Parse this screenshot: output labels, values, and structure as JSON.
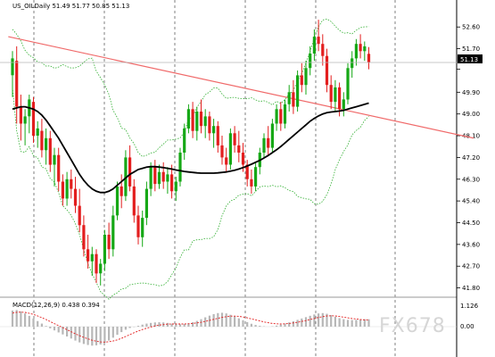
{
  "chart_data": {
    "type": "candlestick",
    "symbol_title": "US_OILDaily  51.49 51.77 50.85 51.13",
    "current_price_label": "51.13",
    "price_axis_ticks": [
      52.6,
      51.7,
      50.85,
      49.9,
      49.0,
      48.1,
      47.2,
      46.3,
      45.4,
      44.5,
      43.6,
      42.7,
      41.8
    ],
    "price_axis_tick_labels": [
      "52.60",
      "51.70",
      "",
      "49.90",
      "49.00",
      "48.10",
      "47.20",
      "46.30",
      "45.40",
      "44.50",
      "43.60",
      "42.70",
      "41.80"
    ],
    "ylim": [
      41.6,
      53.2
    ],
    "macd_label": "MACD(12,26,9) 0.438 0.394",
    "macd_axis_labels": [
      "1.126",
      "0.00"
    ],
    "watermark": "FX678",
    "colors": {
      "bull": "#16a816",
      "bear": "#e31e1e",
      "trendline": "#f06a6a",
      "moving_average": "#000000",
      "bollinger": "#2fae2f",
      "macd_hist": "#b7b7b7",
      "macd_signal": "#e31e1e"
    },
    "candles": [
      {
        "o": 50.6,
        "h": 51.6,
        "l": 49.7,
        "c": 51.3
      },
      {
        "o": 51.2,
        "h": 51.8,
        "l": 48.6,
        "c": 49.3
      },
      {
        "o": 49.3,
        "h": 49.8,
        "l": 47.9,
        "c": 48.6
      },
      {
        "o": 48.6,
        "h": 49.2,
        "l": 47.7,
        "c": 48.9
      },
      {
        "o": 48.9,
        "h": 49.8,
        "l": 48.2,
        "c": 49.6
      },
      {
        "o": 49.5,
        "h": 49.7,
        "l": 47.8,
        "c": 48.1
      },
      {
        "o": 48.1,
        "h": 48.7,
        "l": 47.6,
        "c": 48.4
      },
      {
        "o": 48.3,
        "h": 48.8,
        "l": 47.2,
        "c": 47.5
      },
      {
        "o": 47.5,
        "h": 48.4,
        "l": 46.9,
        "c": 48.0
      },
      {
        "o": 48.0,
        "h": 48.3,
        "l": 46.6,
        "c": 46.9
      },
      {
        "o": 46.9,
        "h": 47.6,
        "l": 46.0,
        "c": 47.3
      },
      {
        "o": 47.3,
        "h": 47.6,
        "l": 45.8,
        "c": 46.2
      },
      {
        "o": 46.2,
        "h": 46.5,
        "l": 45.2,
        "c": 45.5
      },
      {
        "o": 45.5,
        "h": 46.6,
        "l": 45.2,
        "c": 46.3
      },
      {
        "o": 46.3,
        "h": 46.7,
        "l": 45.5,
        "c": 45.9
      },
      {
        "o": 45.9,
        "h": 46.4,
        "l": 44.9,
        "c": 45.2
      },
      {
        "o": 45.2,
        "h": 45.9,
        "l": 44.1,
        "c": 44.4
      },
      {
        "o": 44.4,
        "h": 44.8,
        "l": 43.1,
        "c": 43.4
      },
      {
        "o": 43.4,
        "h": 44.0,
        "l": 42.6,
        "c": 42.9
      },
      {
        "o": 42.9,
        "h": 43.5,
        "l": 42.3,
        "c": 43.2
      },
      {
        "o": 43.2,
        "h": 43.4,
        "l": 42.0,
        "c": 42.4
      },
      {
        "o": 42.4,
        "h": 43.0,
        "l": 41.9,
        "c": 42.8
      },
      {
        "o": 42.8,
        "h": 44.2,
        "l": 42.5,
        "c": 44.0
      },
      {
        "o": 44.0,
        "h": 44.5,
        "l": 43.0,
        "c": 43.4
      },
      {
        "o": 43.4,
        "h": 45.2,
        "l": 43.1,
        "c": 44.8
      },
      {
        "o": 44.8,
        "h": 46.2,
        "l": 44.6,
        "c": 46.0
      },
      {
        "o": 46.0,
        "h": 46.5,
        "l": 45.1,
        "c": 45.6
      },
      {
        "o": 45.6,
        "h": 47.5,
        "l": 45.4,
        "c": 47.2
      },
      {
        "o": 47.2,
        "h": 47.7,
        "l": 45.8,
        "c": 46.0
      },
      {
        "o": 46.0,
        "h": 46.3,
        "l": 44.5,
        "c": 44.8
      },
      {
        "o": 44.8,
        "h": 45.2,
        "l": 43.6,
        "c": 43.9
      },
      {
        "o": 43.9,
        "h": 45.0,
        "l": 43.5,
        "c": 44.7
      },
      {
        "o": 44.7,
        "h": 46.2,
        "l": 44.4,
        "c": 45.9
      },
      {
        "o": 45.9,
        "h": 47.0,
        "l": 45.6,
        "c": 46.8
      },
      {
        "o": 46.8,
        "h": 47.1,
        "l": 45.8,
        "c": 46.1
      },
      {
        "o": 46.1,
        "h": 46.9,
        "l": 45.9,
        "c": 46.6
      },
      {
        "o": 46.6,
        "h": 47.0,
        "l": 45.9,
        "c": 46.2
      },
      {
        "o": 46.2,
        "h": 46.8,
        "l": 45.7,
        "c": 46.5
      },
      {
        "o": 46.5,
        "h": 46.9,
        "l": 45.5,
        "c": 45.8
      },
      {
        "o": 45.8,
        "h": 46.4,
        "l": 45.4,
        "c": 46.2
      },
      {
        "o": 46.2,
        "h": 47.6,
        "l": 46.0,
        "c": 47.4
      },
      {
        "o": 47.4,
        "h": 48.6,
        "l": 47.1,
        "c": 48.4
      },
      {
        "o": 48.4,
        "h": 49.4,
        "l": 48.2,
        "c": 49.2
      },
      {
        "o": 49.2,
        "h": 49.5,
        "l": 48.0,
        "c": 48.3
      },
      {
        "o": 48.3,
        "h": 49.3,
        "l": 47.9,
        "c": 49.1
      },
      {
        "o": 49.1,
        "h": 49.6,
        "l": 48.2,
        "c": 48.5
      },
      {
        "o": 48.5,
        "h": 49.2,
        "l": 48.0,
        "c": 48.9
      },
      {
        "o": 48.9,
        "h": 49.1,
        "l": 47.9,
        "c": 48.2
      },
      {
        "o": 48.2,
        "h": 48.8,
        "l": 47.6,
        "c": 48.5
      },
      {
        "o": 48.5,
        "h": 48.7,
        "l": 47.4,
        "c": 47.7
      },
      {
        "o": 47.7,
        "h": 48.1,
        "l": 46.9,
        "c": 47.2
      },
      {
        "o": 47.2,
        "h": 47.6,
        "l": 46.6,
        "c": 46.9
      },
      {
        "o": 46.9,
        "h": 48.4,
        "l": 46.7,
        "c": 48.2
      },
      {
        "o": 48.2,
        "h": 48.5,
        "l": 47.4,
        "c": 47.7
      },
      {
        "o": 47.7,
        "h": 48.3,
        "l": 47.0,
        "c": 47.4
      },
      {
        "o": 47.4,
        "h": 47.8,
        "l": 46.6,
        "c": 46.9
      },
      {
        "o": 46.9,
        "h": 47.1,
        "l": 46.0,
        "c": 46.3
      },
      {
        "o": 46.3,
        "h": 46.7,
        "l": 45.7,
        "c": 46.0
      },
      {
        "o": 46.0,
        "h": 47.0,
        "l": 45.8,
        "c": 46.8
      },
      {
        "o": 46.8,
        "h": 47.6,
        "l": 46.5,
        "c": 47.4
      },
      {
        "o": 47.4,
        "h": 48.2,
        "l": 47.2,
        "c": 48.0
      },
      {
        "o": 48.0,
        "h": 48.5,
        "l": 47.3,
        "c": 47.6
      },
      {
        "o": 47.6,
        "h": 48.8,
        "l": 47.4,
        "c": 48.6
      },
      {
        "o": 48.6,
        "h": 49.4,
        "l": 48.3,
        "c": 49.2
      },
      {
        "o": 49.2,
        "h": 49.5,
        "l": 48.3,
        "c": 48.6
      },
      {
        "o": 48.6,
        "h": 49.6,
        "l": 48.4,
        "c": 49.4
      },
      {
        "o": 49.4,
        "h": 50.2,
        "l": 49.1,
        "c": 49.9
      },
      {
        "o": 49.9,
        "h": 50.4,
        "l": 49.0,
        "c": 49.3
      },
      {
        "o": 49.3,
        "h": 50.8,
        "l": 49.1,
        "c": 50.6
      },
      {
        "o": 50.6,
        "h": 51.1,
        "l": 49.9,
        "c": 50.2
      },
      {
        "o": 50.2,
        "h": 51.2,
        "l": 49.8,
        "c": 50.9
      },
      {
        "o": 50.9,
        "h": 51.8,
        "l": 50.6,
        "c": 51.5
      },
      {
        "o": 51.5,
        "h": 52.5,
        "l": 51.2,
        "c": 52.2
      },
      {
        "o": 52.2,
        "h": 52.9,
        "l": 51.6,
        "c": 51.9
      },
      {
        "o": 51.9,
        "h": 52.3,
        "l": 51.0,
        "c": 51.4
      },
      {
        "o": 51.4,
        "h": 51.7,
        "l": 49.9,
        "c": 50.2
      },
      {
        "o": 50.2,
        "h": 50.6,
        "l": 49.2,
        "c": 49.5
      },
      {
        "o": 49.5,
        "h": 50.4,
        "l": 49.1,
        "c": 50.1
      },
      {
        "o": 50.1,
        "h": 50.3,
        "l": 48.9,
        "c": 49.2
      },
      {
        "o": 49.2,
        "h": 49.9,
        "l": 48.9,
        "c": 49.6
      },
      {
        "o": 49.6,
        "h": 51.1,
        "l": 49.4,
        "c": 50.9
      },
      {
        "o": 50.9,
        "h": 51.6,
        "l": 50.5,
        "c": 51.3
      },
      {
        "o": 51.3,
        "h": 52.1,
        "l": 51.0,
        "c": 51.9
      },
      {
        "o": 51.9,
        "h": 52.3,
        "l": 51.3,
        "c": 51.6
      },
      {
        "o": 51.6,
        "h": 52.0,
        "l": 51.2,
        "c": 51.8
      },
      {
        "o": 51.49,
        "h": 51.77,
        "l": 50.85,
        "c": 51.13
      }
    ],
    "moving_average": [
      49.2,
      49.25,
      49.3,
      49.3,
      49.25,
      49.2,
      49.1,
      48.95,
      48.75,
      48.5,
      48.25,
      48.0,
      47.7,
      47.4,
      47.1,
      46.8,
      46.5,
      46.25,
      46.05,
      45.9,
      45.8,
      45.75,
      45.75,
      45.8,
      45.9,
      46.05,
      46.2,
      46.35,
      46.5,
      46.6,
      46.7,
      46.75,
      46.8,
      46.82,
      46.82,
      46.8,
      46.78,
      46.75,
      46.72,
      46.68,
      46.65,
      46.62,
      46.6,
      46.58,
      46.56,
      46.55,
      46.55,
      46.55,
      46.55,
      46.56,
      46.58,
      46.6,
      46.63,
      46.67,
      46.72,
      46.78,
      46.85,
      46.92,
      47.0,
      47.08,
      47.18,
      47.28,
      47.4,
      47.52,
      47.65,
      47.8,
      47.95,
      48.1,
      48.25,
      48.4,
      48.55,
      48.7,
      48.82,
      48.92,
      49.0,
      49.05,
      49.08,
      49.1,
      49.12,
      49.15,
      49.2,
      49.25,
      49.3,
      49.35,
      49.4,
      49.45
    ],
    "trendline": {
      "start": {
        "index": -1,
        "price": 52.2
      },
      "end": {
        "index": 110,
        "price": 48.0
      }
    },
    "macd_histogram": [
      0.95,
      0.98,
      0.9,
      0.78,
      0.64,
      0.48,
      0.33,
      0.18,
      0.04,
      -0.1,
      -0.22,
      -0.34,
      -0.46,
      -0.58,
      -0.7,
      -0.82,
      -0.93,
      -1.02,
      -1.08,
      -1.12,
      -1.1,
      -1.05,
      -0.95,
      -0.82,
      -0.65,
      -0.48,
      -0.32,
      -0.18,
      -0.08,
      -0.02,
      0.05,
      0.12,
      0.18,
      0.22,
      0.25,
      0.26,
      0.25,
      0.22,
      0.18,
      0.15,
      0.14,
      0.16,
      0.2,
      0.26,
      0.34,
      0.44,
      0.55,
      0.65,
      0.74,
      0.8,
      0.82,
      0.78,
      0.7,
      0.6,
      0.49,
      0.38,
      0.27,
      0.17,
      0.1,
      0.05,
      0.02,
      0.0,
      0.02,
      0.06,
      0.12,
      0.18,
      0.25,
      0.32,
      0.4,
      0.48,
      0.56,
      0.64,
      0.72,
      0.78,
      0.8,
      0.76,
      0.68,
      0.58,
      0.5,
      0.44,
      0.4,
      0.39,
      0.4,
      0.42,
      0.44,
      0.438
    ],
    "macd_signal": [
      0.8,
      0.85,
      0.86,
      0.84,
      0.79,
      0.72,
      0.63,
      0.53,
      0.42,
      0.3,
      0.18,
      0.06,
      -0.06,
      -0.18,
      -0.3,
      -0.42,
      -0.53,
      -0.63,
      -0.72,
      -0.8,
      -0.86,
      -0.9,
      -0.91,
      -0.89,
      -0.85,
      -0.78,
      -0.69,
      -0.58,
      -0.47,
      -0.36,
      -0.26,
      -0.17,
      -0.09,
      -0.02,
      0.04,
      0.09,
      0.12,
      0.15,
      0.16,
      0.16,
      0.16,
      0.16,
      0.17,
      0.19,
      0.22,
      0.26,
      0.31,
      0.37,
      0.43,
      0.49,
      0.55,
      0.59,
      0.62,
      0.62,
      0.61,
      0.57,
      0.52,
      0.46,
      0.4,
      0.34,
      0.28,
      0.23,
      0.19,
      0.17,
      0.16,
      0.17,
      0.19,
      0.22,
      0.26,
      0.31,
      0.36,
      0.42,
      0.48,
      0.54,
      0.59,
      0.63,
      0.64,
      0.63,
      0.6,
      0.56,
      0.52,
      0.48,
      0.45,
      0.42,
      0.4,
      0.394
    ]
  }
}
